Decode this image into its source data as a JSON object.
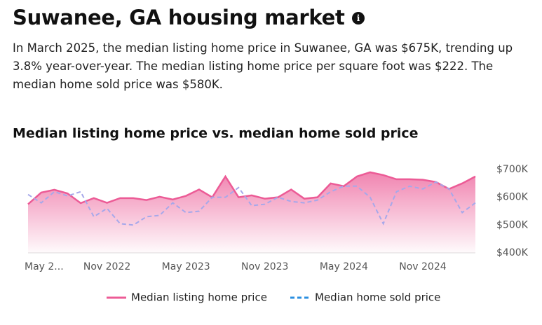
{
  "header": {
    "title": "Suwanee, GA housing market",
    "description": "In March 2025, the median listing home price in Suwanee, GA was $675K, trending up 3.8% year-over-year. The median listing home price per square foot was $222. The median home sold price was $580K."
  },
  "chart_data": {
    "type": "line",
    "title": "Median listing home price vs. median home sold price",
    "categories": [
      "May 2...",
      null,
      null,
      null,
      null,
      null,
      "Nov 2022",
      null,
      null,
      null,
      null,
      null,
      "May 2023",
      null,
      null,
      null,
      null,
      null,
      "Nov 2023",
      null,
      null,
      null,
      null,
      null,
      "May 2024",
      null,
      null,
      null,
      null,
      null,
      "Nov 2024",
      null,
      null,
      null,
      null
    ],
    "series": [
      {
        "name": "Median listing home price",
        "color": "#ec5b96",
        "values": [
          575,
          617,
          627,
          614,
          579,
          597,
          580,
          597,
          597,
          590,
          602,
          592,
          605,
          628,
          600,
          675,
          600,
          607,
          595,
          600,
          628,
          595,
          600,
          650,
          640,
          675,
          690,
          680,
          665,
          665,
          663,
          655,
          630,
          650,
          675
        ]
      },
      {
        "name": "Median home sold price",
        "color": "#2b8fe0",
        "values": [
          610,
          580,
          620,
          605,
          620,
          530,
          560,
          505,
          500,
          530,
          535,
          580,
          545,
          550,
          600,
          600,
          635,
          570,
          575,
          600,
          585,
          580,
          590,
          620,
          640,
          640,
          600,
          505,
          620,
          640,
          630,
          655,
          630,
          545,
          580
        ]
      }
    ],
    "ylim": [
      400,
      700
    ],
    "yticks": [
      {
        "value": 400,
        "label": "$400K"
      },
      {
        "value": 500,
        "label": "$500K"
      },
      {
        "value": 600,
        "label": "$600K"
      },
      {
        "value": 700,
        "label": "$700K"
      }
    ],
    "legend": "bottom"
  }
}
